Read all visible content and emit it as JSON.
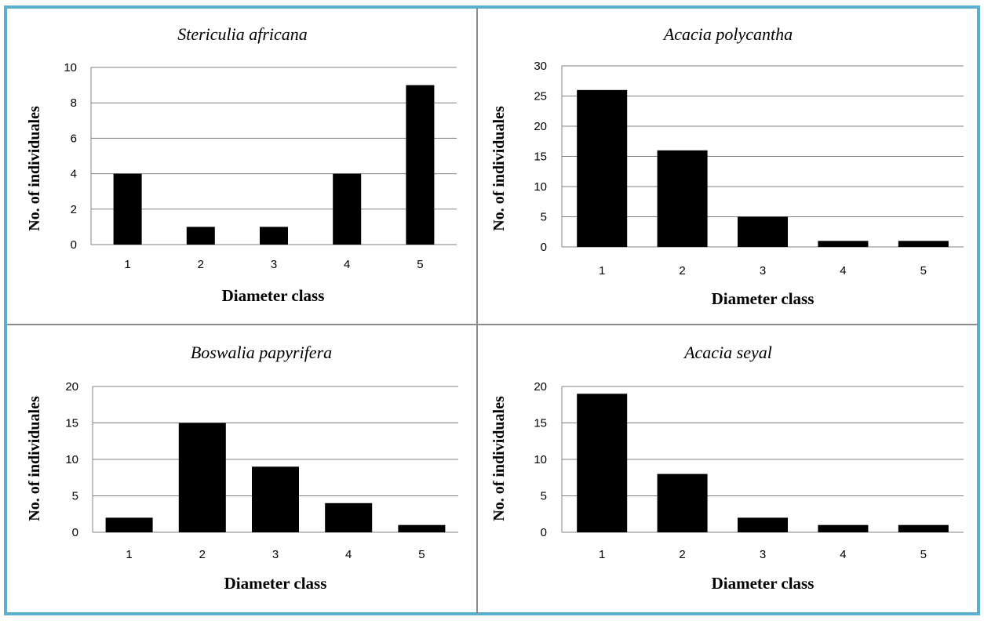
{
  "colors": {
    "background": "#ffffff",
    "panel_border": "#5aaed0",
    "divider": "#8c8c8c",
    "bar_fill": "#000000",
    "gridline": "#808080"
  },
  "chart_data": [
    {
      "type": "bar",
      "title": "Stericulia africana",
      "xlabel": "Diameter class",
      "ylabel": "No. of individuales",
      "categories": [
        "1",
        "2",
        "3",
        "4",
        "5"
      ],
      "values": [
        4,
        1,
        1,
        4,
        9
      ],
      "ylim": [
        0,
        10
      ],
      "yticks": [
        "0",
        "2",
        "4",
        "6",
        "8",
        "10"
      ],
      "grid": true,
      "legend": "none"
    },
    {
      "type": "bar",
      "title": "Acacia polycantha",
      "xlabel": "Diameter class",
      "ylabel": "No. of individuales",
      "categories": [
        "1",
        "2",
        "3",
        "4",
        "5"
      ],
      "values": [
        26,
        16,
        5,
        1,
        1
      ],
      "ylim": [
        0,
        30
      ],
      "yticks": [
        "0",
        "5",
        "10",
        "15",
        "20",
        "25",
        "30"
      ],
      "grid": true,
      "legend": "none"
    },
    {
      "type": "bar",
      "title": "Boswalia papyrifera",
      "xlabel": "Diameter class",
      "ylabel": "No. of individuales",
      "categories": [
        "1",
        "2",
        "3",
        "4",
        "5"
      ],
      "values": [
        2,
        15,
        9,
        4,
        1
      ],
      "ylim": [
        0,
        20
      ],
      "yticks": [
        "0",
        "5",
        "10",
        "15",
        "20"
      ],
      "grid": true,
      "legend": "none"
    },
    {
      "type": "bar",
      "title": "Acacia seyal",
      "xlabel": "Diameter class",
      "ylabel": "No. of individuales",
      "categories": [
        "1",
        "2",
        "3",
        "4",
        "5"
      ],
      "values": [
        19,
        8,
        2,
        1,
        1
      ],
      "ylim": [
        0,
        20
      ],
      "yticks": [
        "0",
        "5",
        "10",
        "15",
        "20"
      ],
      "grid": true,
      "legend": "none"
    }
  ]
}
